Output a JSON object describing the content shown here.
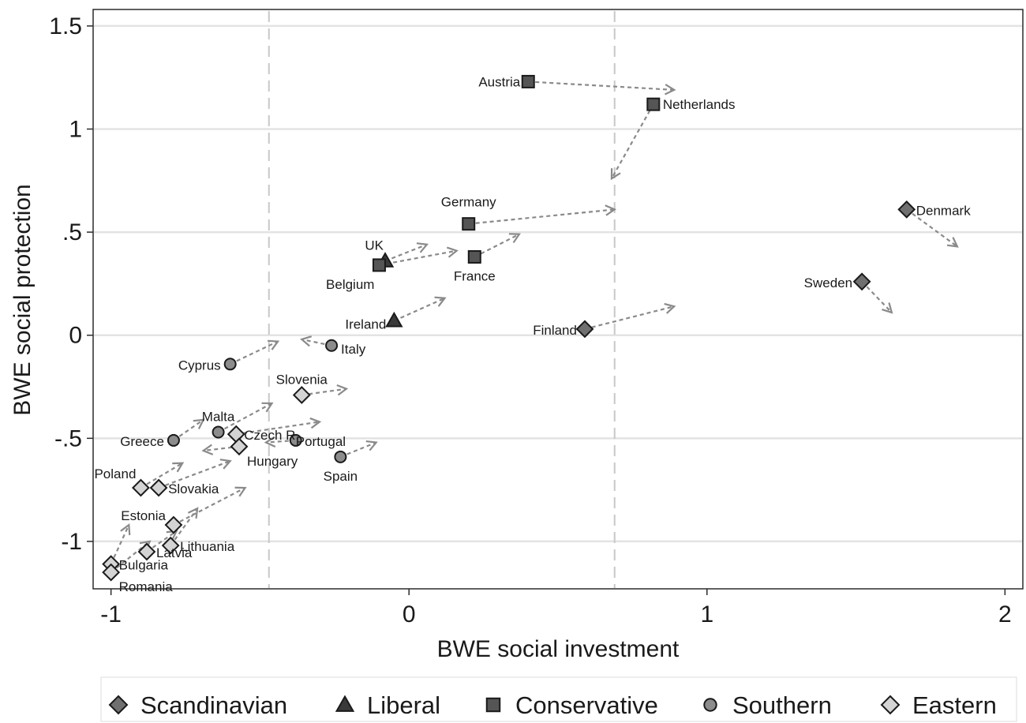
{
  "chart_data": {
    "type": "scatter",
    "xlabel": "BWE social investment",
    "ylabel": "BWE social protection",
    "xlim": [
      -1.06,
      2.06
    ],
    "ylim": [
      -1.23,
      1.58
    ],
    "x_ticks": [
      -1,
      0,
      1,
      2
    ],
    "x_tick_labels": [
      "-1",
      "0",
      "1",
      "2"
    ],
    "y_ticks": [
      1.5,
      1,
      0.5,
      0,
      -0.5,
      -1
    ],
    "y_tick_labels": [
      "1.5",
      "1",
      ".5",
      "0",
      "-.5",
      "-1"
    ],
    "grid": "horizontal",
    "reference_lines_x": [
      -0.47,
      0.69
    ],
    "legend_position": "bottom",
    "legend": [
      {
        "name": "Scandinavian",
        "marker": "diamond",
        "color": "#707070"
      },
      {
        "name": "Liberal",
        "marker": "triangle",
        "color": "#3a3a3a"
      },
      {
        "name": "Conservative",
        "marker": "square",
        "color": "#555555"
      },
      {
        "name": "Southern",
        "marker": "circle",
        "color": "#8c8c8c"
      },
      {
        "name": "Eastern",
        "marker": "diamond",
        "color": "#d4d4d4"
      }
    ],
    "points": [
      {
        "label": "Austria",
        "group": "Conservative",
        "x": 0.4,
        "y": 1.23,
        "arrow_to": [
          0.89,
          1.19
        ]
      },
      {
        "label": "Netherlands",
        "group": "Conservative",
        "x": 0.82,
        "y": 1.12,
        "arrow_to": [
          0.68,
          0.76
        ]
      },
      {
        "label": "Germany",
        "group": "Conservative",
        "x": 0.2,
        "y": 0.54,
        "arrow_to": [
          0.69,
          0.61
        ]
      },
      {
        "label": "UK",
        "group": "Liberal",
        "x": -0.08,
        "y": 0.36,
        "arrow_to": [
          0.06,
          0.44
        ]
      },
      {
        "label": "Belgium",
        "group": "Conservative",
        "x": -0.1,
        "y": 0.34,
        "arrow_to": [
          0.16,
          0.41
        ]
      },
      {
        "label": "France",
        "group": "Conservative",
        "x": 0.22,
        "y": 0.38,
        "arrow_to": [
          0.37,
          0.49
        ]
      },
      {
        "label": "Ireland",
        "group": "Liberal",
        "x": -0.05,
        "y": 0.07,
        "arrow_to": [
          0.12,
          0.18
        ]
      },
      {
        "label": "Italy",
        "group": "Southern",
        "x": -0.26,
        "y": -0.05,
        "arrow_to": [
          -0.36,
          -0.02
        ]
      },
      {
        "label": "Cyprus",
        "group": "Southern",
        "x": -0.6,
        "y": -0.14,
        "arrow_to": [
          -0.44,
          -0.03
        ]
      },
      {
        "label": "Finland",
        "group": "Scandinavian",
        "x": 0.59,
        "y": 0.03,
        "arrow_to": [
          0.89,
          0.14
        ]
      },
      {
        "label": "Denmark",
        "group": "Scandinavian",
        "x": 1.67,
        "y": 0.61,
        "arrow_to": [
          1.84,
          0.43
        ]
      },
      {
        "label": "Sweden",
        "group": "Scandinavian",
        "x": 1.52,
        "y": 0.26,
        "arrow_to": [
          1.62,
          0.11
        ]
      },
      {
        "label": "Slovenia",
        "group": "Eastern",
        "x": -0.36,
        "y": -0.29,
        "arrow_to": [
          -0.21,
          -0.26
        ]
      },
      {
        "label": "Malta",
        "group": "Southern",
        "x": -0.64,
        "y": -0.47,
        "arrow_to": [
          -0.46,
          -0.33
        ]
      },
      {
        "label": "Greece",
        "group": "Southern",
        "x": -0.79,
        "y": -0.51,
        "arrow_to": [
          -0.69,
          -0.41
        ]
      },
      {
        "label": "Czech R.",
        "group": "Eastern",
        "x": -0.58,
        "y": -0.48,
        "arrow_to": [
          -0.3,
          -0.42
        ]
      },
      {
        "label": "Portugal",
        "group": "Southern",
        "x": -0.38,
        "y": -0.51,
        "arrow_to": [
          -0.48,
          -0.52
        ]
      },
      {
        "label": "Hungary",
        "group": "Eastern",
        "x": -0.57,
        "y": -0.54,
        "arrow_to": [
          -0.69,
          -0.56
        ]
      },
      {
        "label": "Spain",
        "group": "Southern",
        "x": -0.23,
        "y": -0.59,
        "arrow_to": [
          -0.11,
          -0.52
        ]
      },
      {
        "label": "Poland",
        "group": "Eastern",
        "x": -0.9,
        "y": -0.74,
        "arrow_to": [
          -0.76,
          -0.62
        ]
      },
      {
        "label": "Slovakia",
        "group": "Eastern",
        "x": -0.84,
        "y": -0.74,
        "arrow_to": [
          -0.6,
          -0.61
        ]
      },
      {
        "label": "Estonia",
        "group": "Eastern",
        "x": -0.79,
        "y": -0.92,
        "arrow_to": [
          -0.55,
          -0.74
        ]
      },
      {
        "label": "Lithuania",
        "group": "Eastern",
        "x": -0.8,
        "y": -1.02,
        "arrow_to": [
          -0.71,
          -0.84
        ]
      },
      {
        "label": "Latvia",
        "group": "Eastern",
        "x": -0.88,
        "y": -1.05,
        "arrow_to": [
          -0.78,
          -0.95
        ]
      },
      {
        "label": "Bulgaria",
        "group": "Eastern",
        "x": -1.0,
        "y": -1.11,
        "arrow_to": [
          -0.94,
          -0.92
        ]
      },
      {
        "label": "Romania",
        "group": "Eastern",
        "x": -1.0,
        "y": -1.15,
        "arrow_to": [
          -0.87,
          -1.0
        ]
      }
    ]
  }
}
